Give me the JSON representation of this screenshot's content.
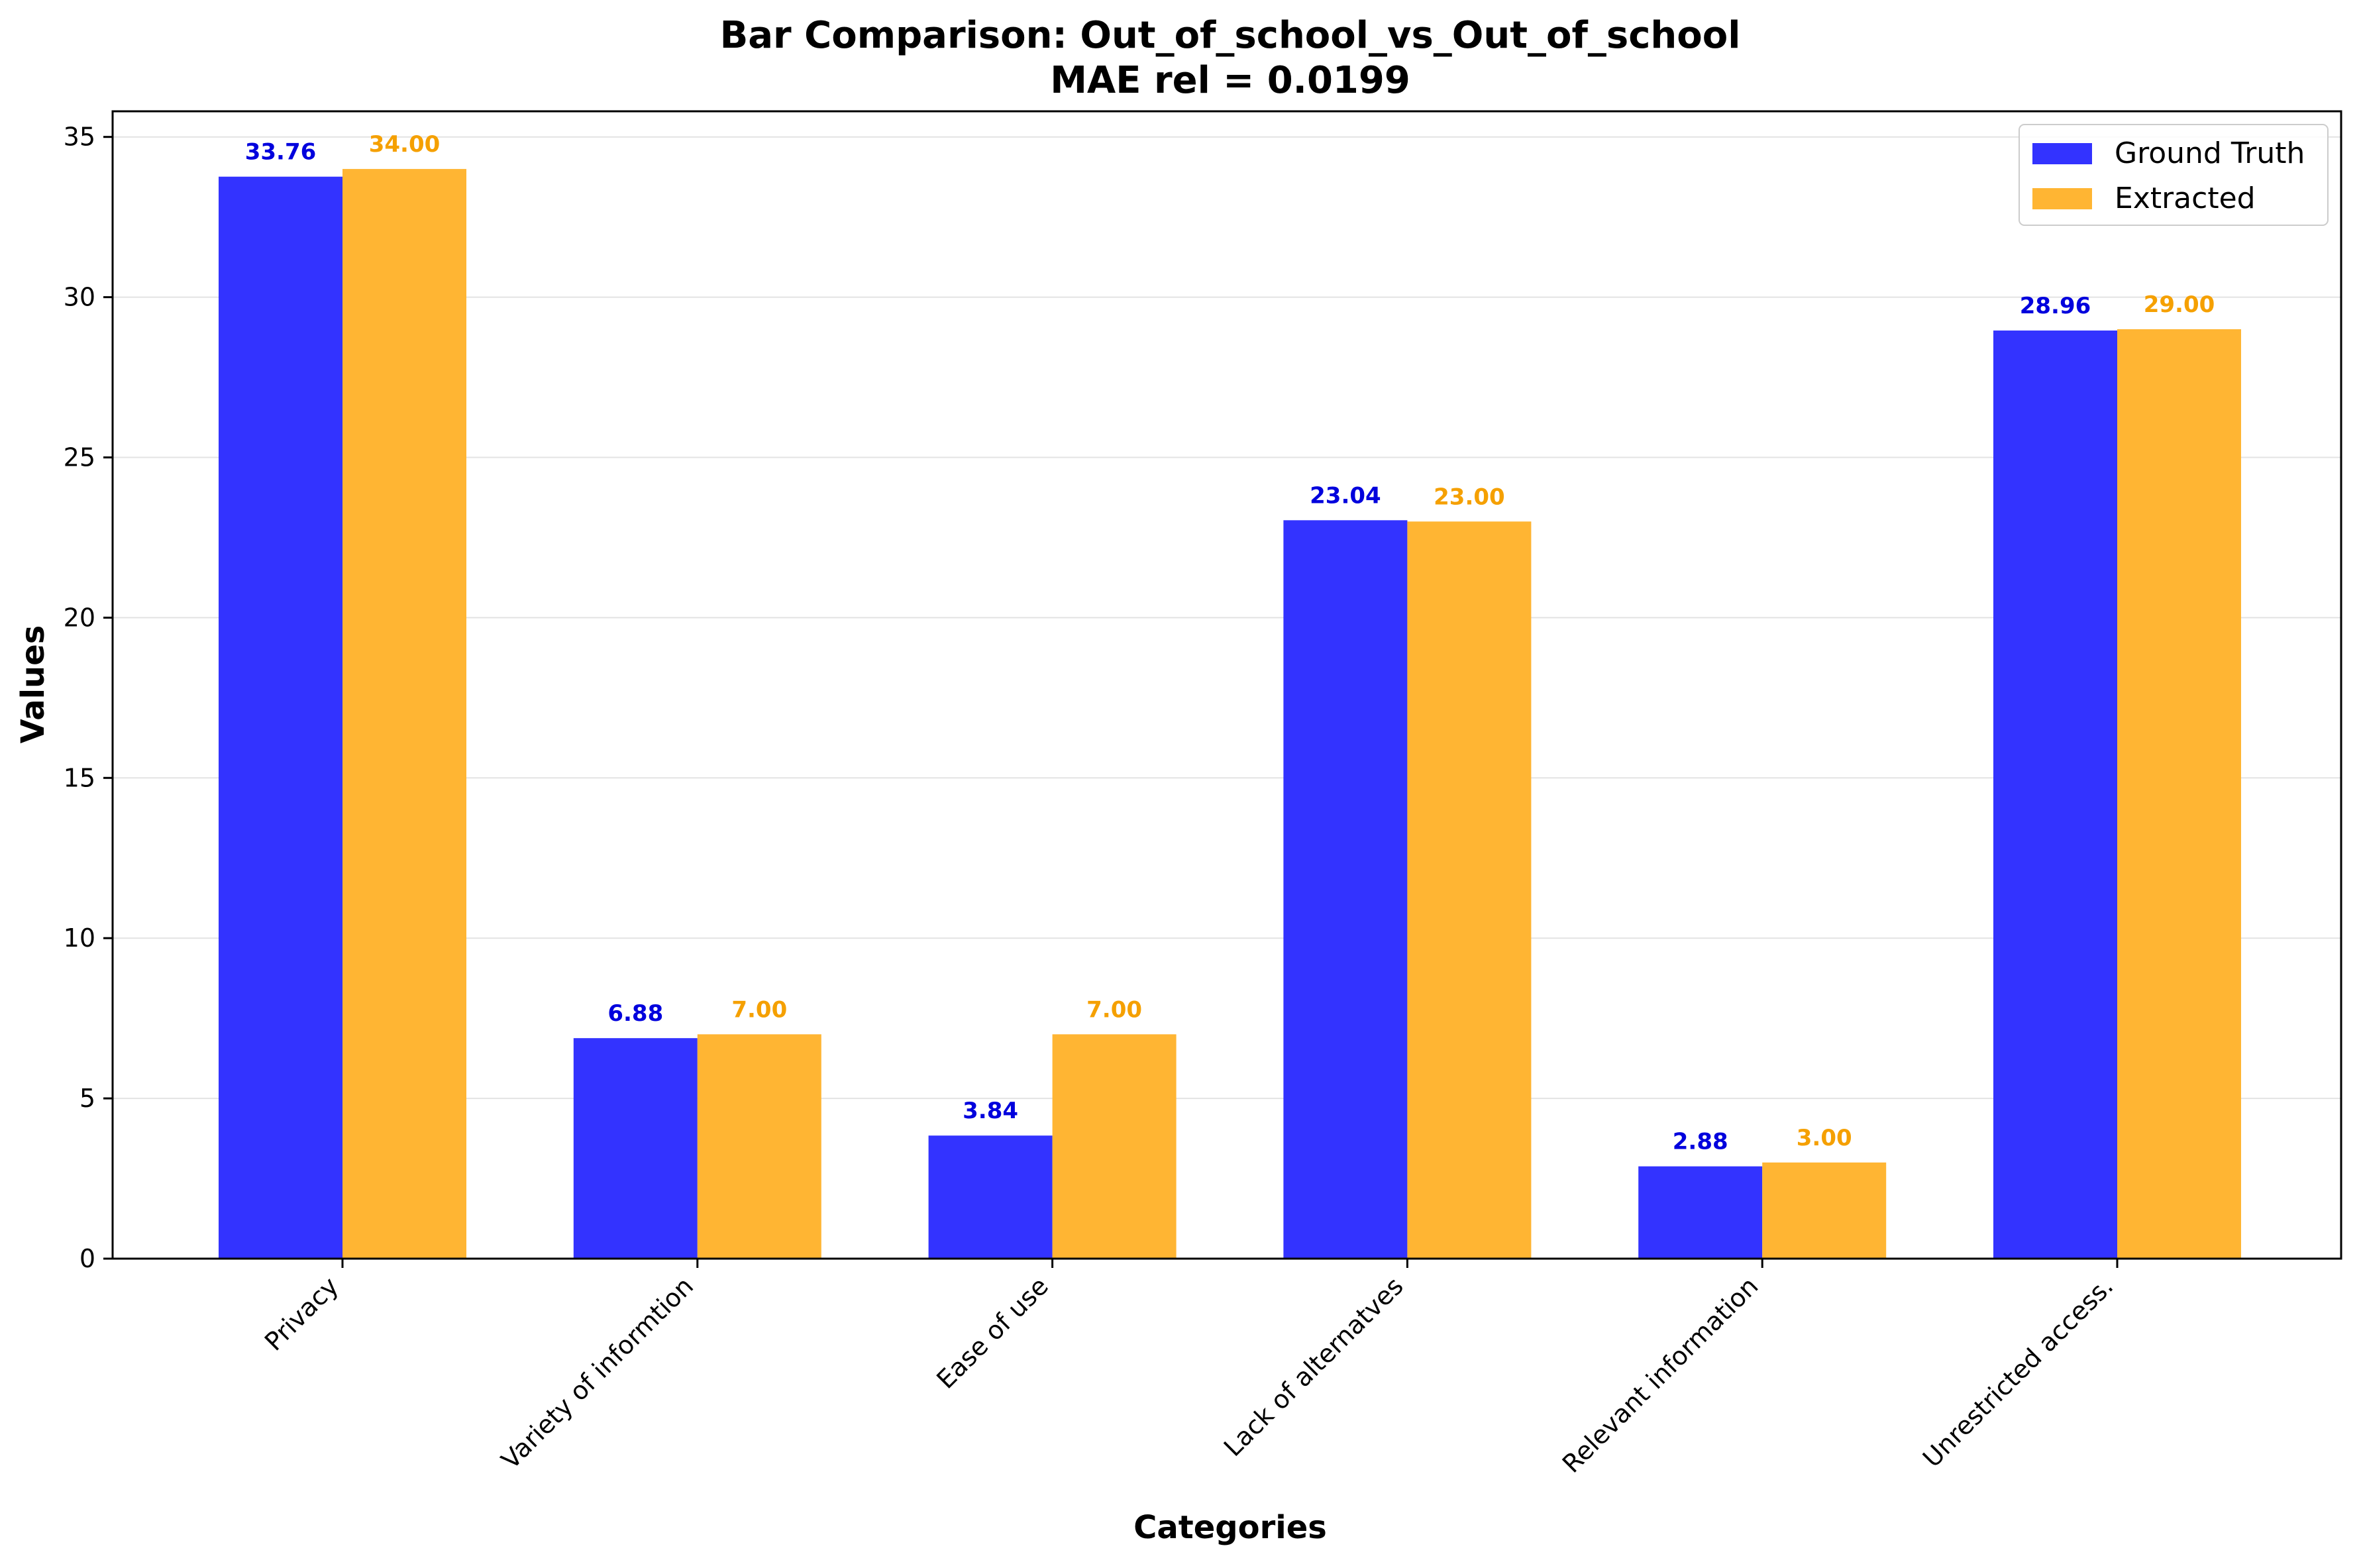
{
  "chart_data": {
    "type": "bar",
    "title": "Bar Comparison: Out_of_school_vs_Out_of_school",
    "subtitle": "MAE rel = 0.0199",
    "xlabel": "Categories",
    "ylabel": "Values",
    "ylim": [
      0,
      35.8
    ],
    "yticks": [
      0,
      5,
      10,
      15,
      20,
      25,
      30,
      35
    ],
    "grid": "horizontal",
    "legend_position": "top-right",
    "categories": [
      "Privacy",
      "Variety of informtion",
      "Ease of use",
      "Lack of alternatves",
      "Relevant information",
      "Unrestricted access."
    ],
    "series": [
      {
        "name": "Ground Truth",
        "color": "#3333ff",
        "label_color": "#0000dd",
        "values": [
          33.76,
          6.88,
          3.84,
          23.04,
          2.88,
          28.96
        ],
        "value_labels": [
          "33.76",
          "6.88",
          "3.84",
          "23.04",
          "2.88",
          "28.96"
        ]
      },
      {
        "name": "Extracted",
        "color": "#ffb533",
        "label_color": "#f5a000",
        "values": [
          34.0,
          7.0,
          7.0,
          23.0,
          3.0,
          29.0
        ],
        "value_labels": [
          "34.00",
          "7.00",
          "7.00",
          "23.00",
          "3.00",
          "29.00"
        ]
      }
    ]
  }
}
